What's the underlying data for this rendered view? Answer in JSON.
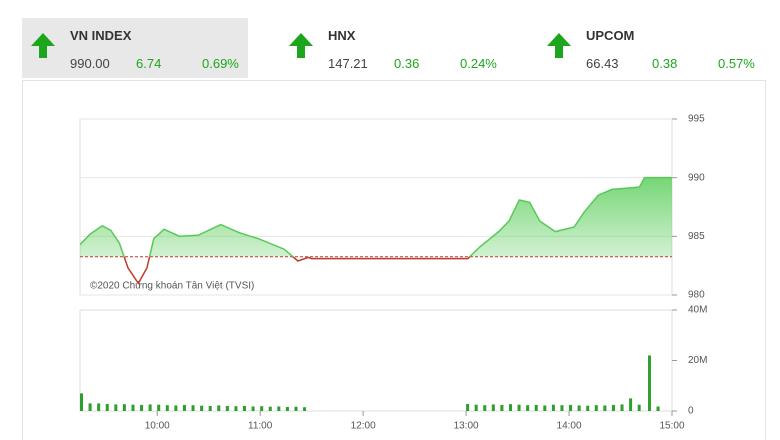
{
  "tickers": [
    {
      "name": "VN INDEX",
      "value": "990.00",
      "change": "6.74",
      "percent": "0.69%"
    },
    {
      "name": "HNX",
      "value": "147.21",
      "change": "0.36",
      "percent": "0.24%"
    },
    {
      "name": "UPCOM",
      "value": "66.43",
      "change": "0.38",
      "percent": "0.57%"
    }
  ],
  "chart_data": [
    {
      "type": "line",
      "annotation": "©2020 Chứng khoán Tân Việt (TVSI)",
      "x": [
        "09:15",
        "09:21",
        "09:28",
        "09:33",
        "09:38",
        "09:43",
        "09:49",
        "09:54",
        "09:58",
        "10:04",
        "10:13",
        "10:24",
        "10:37",
        "10:48",
        "10:59",
        "11:14",
        "11:22",
        "11:28",
        "11:30",
        "13:01",
        "13:08",
        "13:19",
        "13:25",
        "13:31",
        "13:37",
        "13:43",
        "13:52",
        "14:03",
        "14:09",
        "14:17",
        "14:25",
        "14:41",
        "14:44",
        "15:00"
      ],
      "series": [
        {
          "color": "#58c958",
          "values": [
            984.3,
            985.2,
            985.9,
            985.5,
            984.4,
            982.3,
            981.0,
            982.3,
            984.8,
            985.6,
            985.0,
            985.1,
            986.0,
            985.3,
            984.8,
            983.9,
            982.9,
            983.2,
            983.1,
            983.1,
            984.1,
            985.4,
            986.3,
            988.1,
            987.9,
            986.3,
            985.4,
            985.8,
            987.1,
            988.5,
            989.0,
            989.2,
            990.0,
            990.0
          ]
        }
      ],
      "reference": 983.26,
      "reference_color": "#c0392b",
      "xlim": [
        "09:15",
        "15:00"
      ],
      "ylim": [
        980,
        995
      ],
      "yticks": [
        980,
        985,
        990,
        995
      ],
      "grid": true
    },
    {
      "type": "bar",
      "x": [
        "09:15",
        "09:20",
        "09:25",
        "09:30",
        "09:35",
        "09:40",
        "09:45",
        "09:50",
        "09:55",
        "10:00",
        "10:05",
        "10:10",
        "10:15",
        "10:20",
        "10:25",
        "10:30",
        "10:35",
        "10:40",
        "10:45",
        "10:50",
        "10:55",
        "11:00",
        "11:05",
        "11:10",
        "11:15",
        "11:20",
        "11:25",
        "13:00",
        "13:05",
        "13:10",
        "13:15",
        "13:20",
        "13:25",
        "13:30",
        "13:35",
        "13:40",
        "13:45",
        "13:50",
        "13:55",
        "14:00",
        "14:05",
        "14:10",
        "14:15",
        "14:20",
        "14:25",
        "14:30",
        "14:35",
        "14:40",
        "14:46",
        "14:51"
      ],
      "series": [
        {
          "color": "#2e9e2e",
          "values": [
            7000000,
            3000000,
            3000000,
            2800000,
            2600000,
            2700000,
            2500000,
            2400000,
            2600000,
            2500000,
            2300000,
            2200000,
            2400000,
            2300000,
            2100000,
            2000000,
            2200000,
            2000000,
            1900000,
            2000000,
            1800000,
            1900000,
            1700000,
            1800000,
            1600000,
            1700000,
            1500000,
            2800000,
            2500000,
            2300000,
            2600000,
            2400000,
            2700000,
            2500000,
            2300000,
            2400000,
            2200000,
            2500000,
            2300000,
            2400000,
            2200000,
            2100000,
            2300000,
            2200000,
            2400000,
            2600000,
            5000000,
            2500000,
            22000000,
            1800000
          ]
        }
      ],
      "xlim": [
        "09:15",
        "15:00"
      ],
      "xticks": [
        "10:00",
        "11:00",
        "12:00",
        "13:00",
        "14:00",
        "15:00"
      ],
      "ylim": [
        0,
        40000000
      ],
      "yticks": [
        0,
        {
          "value": 20000000,
          "label": "20M"
        },
        {
          "value": 40000000,
          "label": "40M"
        }
      ]
    }
  ]
}
